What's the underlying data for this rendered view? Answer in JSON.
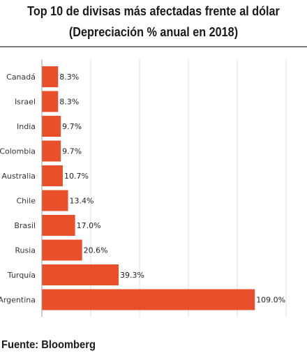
{
  "chart_data": {
    "type": "bar",
    "orientation": "horizontal",
    "title": "Top 10 de divisas más afectadas frente al dólar",
    "subtitle": "(Depreciación % anual en 2018)",
    "categories": [
      "Canadá",
      "Israel",
      "India",
      "Colombia",
      "Australia",
      "Chile",
      "Brasil",
      "Rusia",
      "Turquía",
      "Argentina"
    ],
    "values": [
      8.3,
      8.3,
      9.7,
      9.7,
      10.7,
      13.4,
      17.0,
      20.6,
      39.3,
      109.0
    ],
    "value_labels": [
      "8.3%",
      "8.3%",
      "9.7%",
      "9.7%",
      "10.7%",
      "13.4%",
      "17.0%",
      "20.6%",
      "39.3%",
      "109.0%"
    ],
    "xlim": [
      0,
      125
    ],
    "grid": true,
    "bar_color": "#e8502c",
    "source": "Fuente: Bloomberg"
  }
}
